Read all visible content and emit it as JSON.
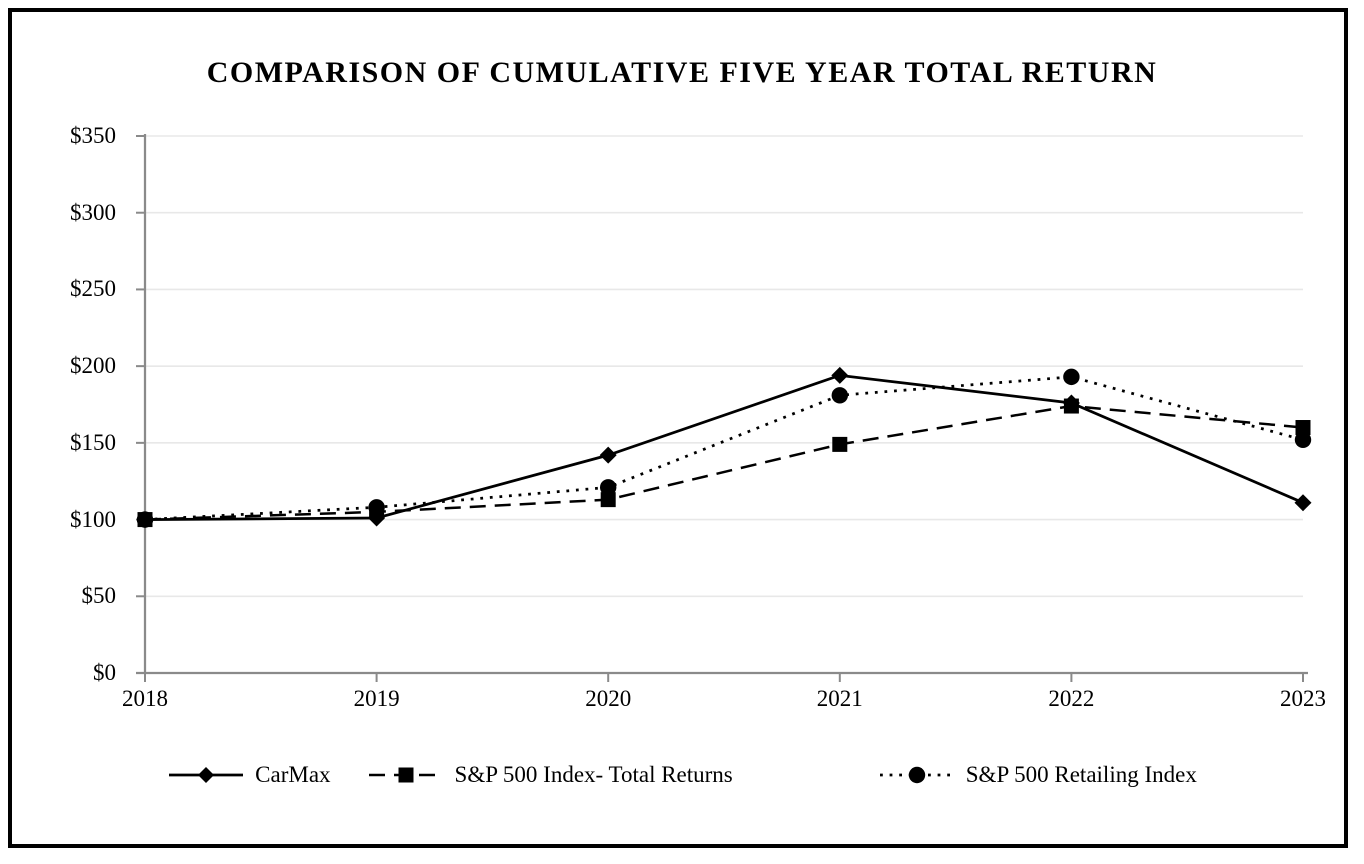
{
  "chart_data": {
    "type": "line",
    "title": "COMPARISON OF CUMULATIVE FIVE YEAR TOTAL RETURN",
    "x_tick_labels": [
      "2018",
      "2019",
      "2020",
      "2021",
      "2022",
      "2023"
    ],
    "y_tick_labels": [
      "$0",
      "$50",
      "$100",
      "$150",
      "$200",
      "$250",
      "$300",
      "$350"
    ],
    "ylim": [
      0,
      350
    ],
    "y_tick_step": 50,
    "grid": "horizontal",
    "legend_position": "bottom",
    "series": [
      {
        "name": "CarMax",
        "values": [
          100,
          101,
          142,
          194,
          176,
          111
        ],
        "marker": "diamond",
        "line_style": "solid"
      },
      {
        "name": "S&P 500 Index- Total Returns",
        "values": [
          100,
          105,
          113,
          149,
          174,
          160
        ],
        "marker": "square",
        "line_style": "dashed"
      },
      {
        "name": "S&P 500 Retailing Index",
        "values": [
          100,
          108,
          121,
          181,
          193,
          152
        ],
        "marker": "circle",
        "line_style": "dotted"
      }
    ],
    "colors": {
      "series": "#000000",
      "gridline": "#e8e8e8",
      "axis": "#8a8a8a",
      "border": "#000000",
      "background": "#ffffff"
    }
  }
}
